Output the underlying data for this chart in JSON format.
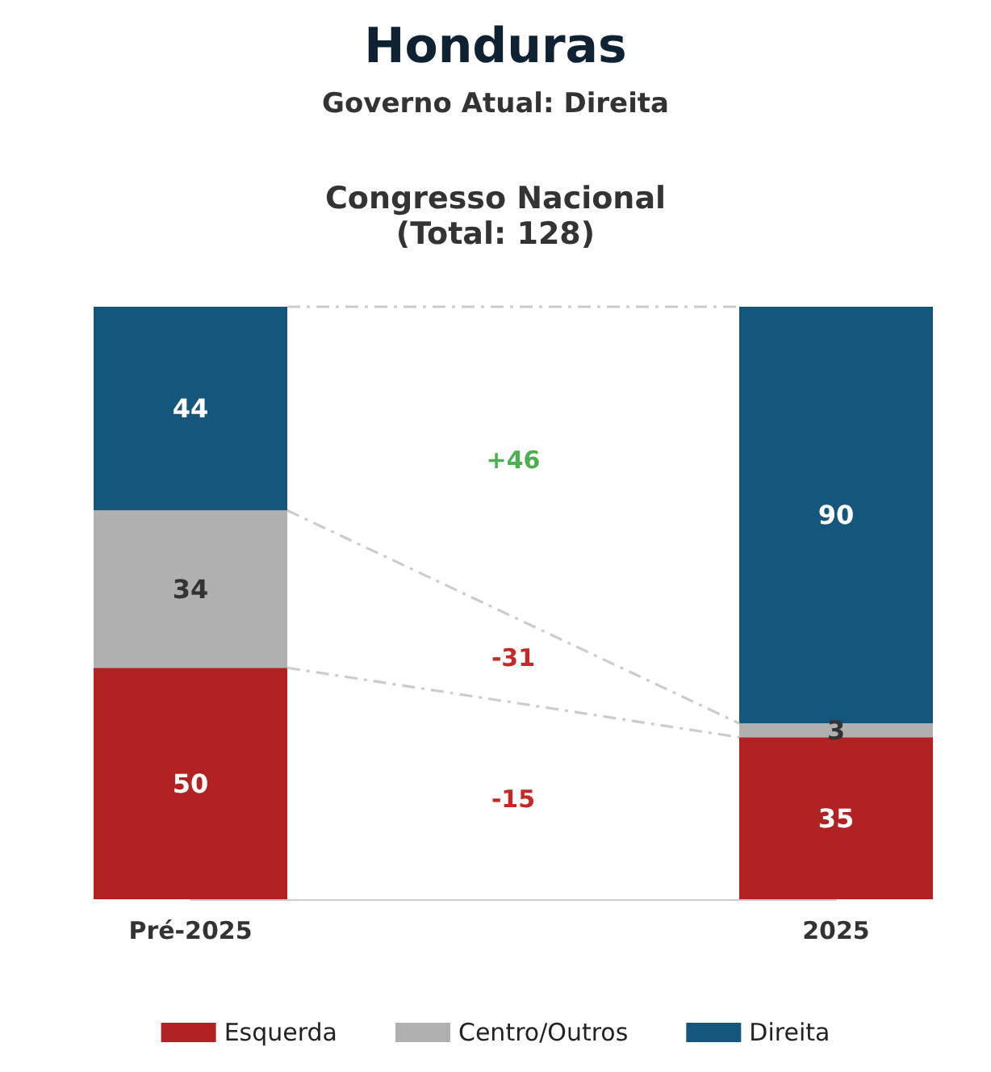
{
  "chart_data": {
    "type": "bar",
    "title": "Honduras",
    "subtitle": "Governo Atual: Direita",
    "stacked": true,
    "data_labels": true,
    "legend": "bottom",
    "categories": [
      "Pré-2025",
      "2025"
    ],
    "series": [
      {
        "name": "Esquerda",
        "color": "#b22222",
        "values": [
          50,
          35
        ]
      },
      {
        "name": "Centro/Outros",
        "color": "#b0b0b0",
        "values": [
          34,
          3
        ]
      },
      {
        "name": "Direita",
        "color": "#15567d",
        "values": [
          44,
          90
        ]
      }
    ],
    "annotations": [
      "Congresso Nacional\n(Total: 128)",
      "+46",
      "-31",
      "-15"
    ]
  }
}
